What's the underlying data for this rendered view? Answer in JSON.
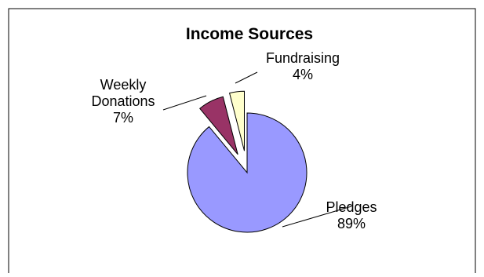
{
  "chart_data": {
    "type": "pie",
    "title": "Income Sources",
    "slices": [
      {
        "label_lines": [
          "Pledges",
          "89%"
        ],
        "value": 89,
        "color": "#9999ff"
      },
      {
        "label_lines": [
          "Weekly",
          "Donations",
          "7%"
        ],
        "value": 7,
        "color": "#993366"
      },
      {
        "label_lines": [
          "Fundraising",
          "4%"
        ],
        "value": 4,
        "color": "#ffffcc"
      }
    ],
    "exploded": true,
    "legend": "none",
    "grid": false
  }
}
